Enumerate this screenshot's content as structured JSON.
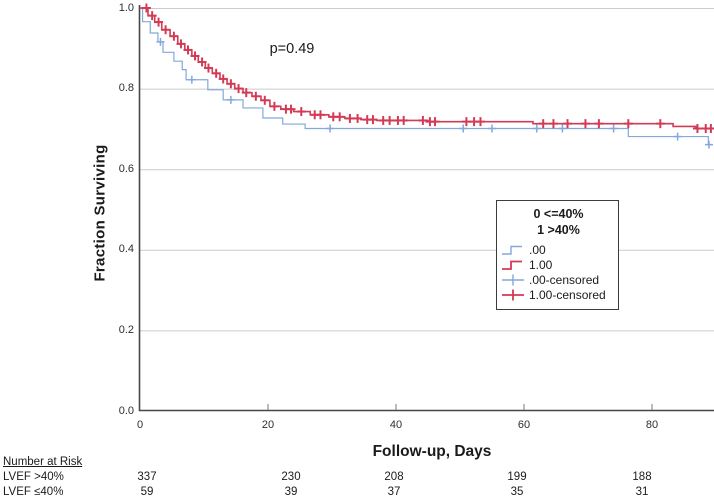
{
  "chart_data": {
    "type": "line",
    "subtype": "kaplan-meier-step-survival",
    "title": "",
    "xlabel": "Follow-up, Days",
    "ylabel": "Fraction Surviving",
    "p_value_label": "p=0.49",
    "xlim": [
      0,
      89.7
    ],
    "ylim": [
      0.0,
      1.0
    ],
    "grid": true,
    "x_ticks": [
      0,
      20,
      40,
      60,
      80
    ],
    "x_tick_labels": [
      "0",
      "20",
      "40",
      "60",
      "80"
    ],
    "y_ticks": [
      0.0,
      0.2,
      0.4,
      0.6,
      0.8,
      1.0
    ],
    "y_tick_labels": [
      "0.0",
      "0.2",
      "0.4",
      "0.6",
      "0.8",
      "1.0"
    ],
    "grid_color": "#cbcbcb",
    "axis_color": "#474747",
    "tick_color": "#8f8f8f",
    "legend": {
      "position": "right-middle",
      "title_lines": [
        "0 <=40%",
        "1 >40%"
      ],
      "items": [
        {
          "label": ".00",
          "symbol": "step",
          "color": "#82a8dc"
        },
        {
          "label": "1.00",
          "symbol": "step",
          "color": "#d23b56"
        },
        {
          "label": ".00-censored",
          "symbol": "plus",
          "color": "#82a8dc"
        },
        {
          "label": "1.00-censored",
          "symbol": "plus",
          "color": "#d23b56"
        }
      ]
    },
    "series": [
      {
        "name": ".00",
        "group": "LVEF ≤40%",
        "color": "#82a8dc",
        "line_width": 1.2,
        "points": [
          [
            0,
            1.0
          ],
          [
            0.4,
            0.966
          ],
          [
            1.6,
            0.938
          ],
          [
            2.8,
            0.916
          ],
          [
            3.6,
            0.89
          ],
          [
            5.3,
            0.868
          ],
          [
            6.6,
            0.847
          ],
          [
            7.2,
            0.822
          ],
          [
            10.6,
            0.797
          ],
          [
            13.0,
            0.772
          ],
          [
            16.1,
            0.752
          ],
          [
            19.2,
            0.727
          ],
          [
            22.3,
            0.712
          ],
          [
            25.8,
            0.701
          ],
          [
            76.3,
            0.681
          ],
          [
            88.8,
            0.661
          ],
          [
            89.4,
            0.661
          ]
        ],
        "censor_days": [
          3.2,
          8.1,
          14.2,
          29.7,
          50.5,
          55.0,
          62.0,
          66.0,
          74.0,
          84.0,
          88.9
        ]
      },
      {
        "name": "1.00",
        "group": "LVEF >40%",
        "color": "#d23b56",
        "line_width": 1.6,
        "points": [
          [
            0,
            1.0
          ],
          [
            1.25,
            0.981
          ],
          [
            2.3,
            0.965
          ],
          [
            3.4,
            0.946
          ],
          [
            4.7,
            0.93
          ],
          [
            5.9,
            0.911
          ],
          [
            7.0,
            0.896
          ],
          [
            8.1,
            0.881
          ],
          [
            9.1,
            0.866
          ],
          [
            10.2,
            0.851
          ],
          [
            11.3,
            0.838
          ],
          [
            12.5,
            0.824
          ],
          [
            13.6,
            0.812
          ],
          [
            14.8,
            0.8
          ],
          [
            16.1,
            0.79
          ],
          [
            17.5,
            0.781
          ],
          [
            18.9,
            0.771
          ],
          [
            20.3,
            0.756
          ],
          [
            22.0,
            0.749
          ],
          [
            24.0,
            0.743
          ],
          [
            26.6,
            0.735
          ],
          [
            29.5,
            0.73
          ],
          [
            32.0,
            0.726
          ],
          [
            34.5,
            0.723
          ],
          [
            37.0,
            0.721
          ],
          [
            45.0,
            0.718
          ],
          [
            61.4,
            0.713
          ],
          [
            83.3,
            0.706
          ],
          [
            86.9,
            0.701
          ],
          [
            89.6,
            0.701
          ]
        ],
        "censor_days": [
          1.0,
          1.9,
          2.9,
          4.0,
          5.3,
          6.4,
          7.5,
          8.6,
          9.7,
          10.7,
          11.9,
          13.0,
          14.2,
          15.4,
          16.6,
          18.1,
          19.5,
          21.0,
          22.8,
          23.6,
          25.2,
          27.3,
          28.2,
          30.2,
          31.2,
          32.8,
          34.0,
          35.5,
          36.4,
          38.0,
          39.0,
          40.3,
          41.2,
          44.2,
          45.3,
          46.1,
          51.0,
          52.2,
          53.2,
          63.0,
          64.6,
          66.8,
          69.6,
          71.7,
          76.3,
          81.3,
          87.1,
          88.4,
          89.2
        ]
      }
    ]
  },
  "risk_table": {
    "title": "Number at Risk",
    "rows": [
      {
        "label": "LVEF >40%",
        "values": [
          "337",
          "230",
          "208",
          "199",
          "188"
        ]
      },
      {
        "label": "LVEF ≤40%",
        "values": [
          "59",
          "39",
          "37",
          "35",
          "31"
        ]
      }
    ]
  }
}
